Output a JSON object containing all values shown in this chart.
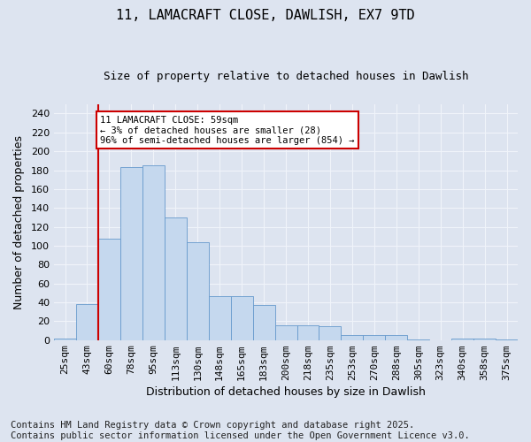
{
  "title_line1": "11, LAMACRAFT CLOSE, DAWLISH, EX7 9TD",
  "title_line2": "Size of property relative to detached houses in Dawlish",
  "xlabel": "Distribution of detached houses by size in Dawlish",
  "ylabel": "Number of detached properties",
  "categories": [
    "25sqm",
    "43sqm",
    "60sqm",
    "78sqm",
    "95sqm",
    "113sqm",
    "130sqm",
    "148sqm",
    "165sqm",
    "183sqm",
    "200sqm",
    "218sqm",
    "235sqm",
    "253sqm",
    "270sqm",
    "288sqm",
    "305sqm",
    "323sqm",
    "340sqm",
    "358sqm",
    "375sqm"
  ],
  "values": [
    2,
    38,
    107,
    183,
    185,
    130,
    104,
    47,
    47,
    37,
    16,
    16,
    15,
    5,
    5,
    5,
    1,
    0,
    2,
    2,
    1
  ],
  "bar_color": "#c5d8ee",
  "bar_edge_color": "#6699cc",
  "background_color": "#dde4f0",
  "grid_color": "#f0f4fa",
  "vline_color": "#cc0000",
  "annotation_text": "11 LAMACRAFT CLOSE: 59sqm\n← 3% of detached houses are smaller (28)\n96% of semi-detached houses are larger (854) →",
  "annotation_box_color": "#ffffff",
  "annotation_box_edge": "#cc0000",
  "ylim": [
    0,
    250
  ],
  "yticks": [
    0,
    20,
    40,
    60,
    80,
    100,
    120,
    140,
    160,
    180,
    200,
    220,
    240
  ],
  "footer": "Contains HM Land Registry data © Crown copyright and database right 2025.\nContains public sector information licensed under the Open Government Licence v3.0.",
  "footer_fontsize": 7.5,
  "title1_fontsize": 11,
  "title2_fontsize": 9,
  "xlabel_fontsize": 9,
  "ylabel_fontsize": 9,
  "tick_fontsize": 8,
  "annot_fontsize": 7.5
}
